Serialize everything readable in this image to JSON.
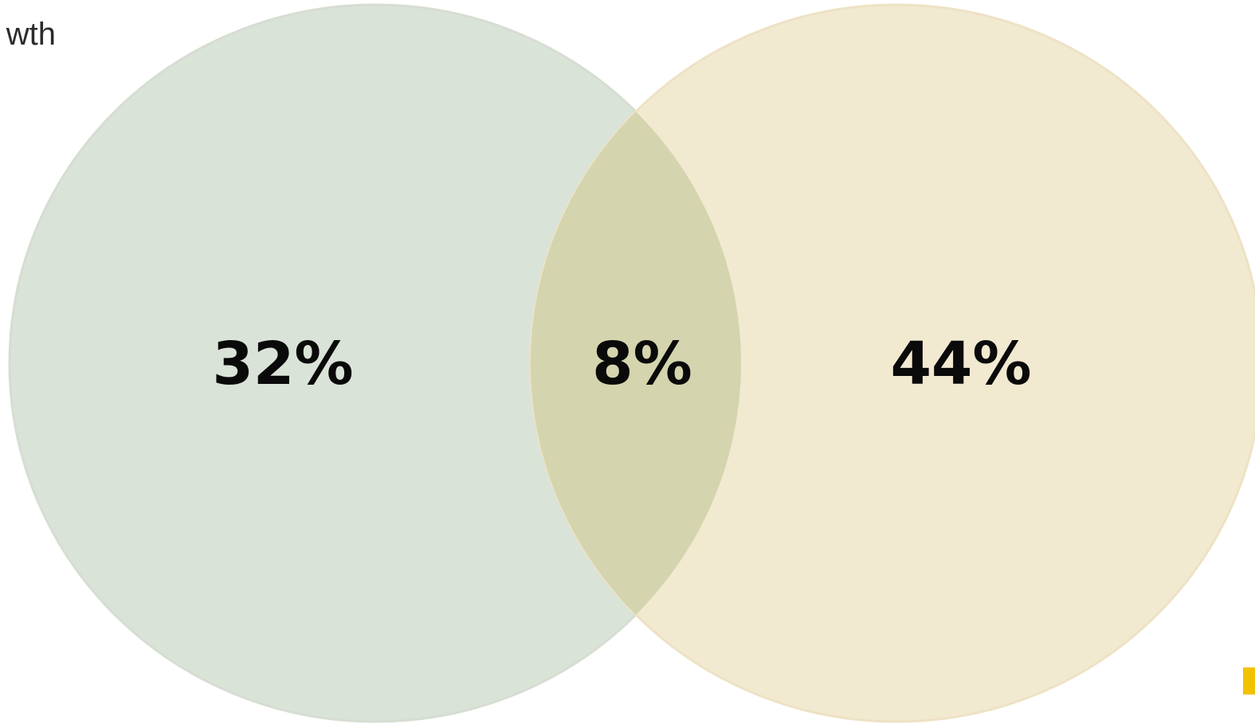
{
  "heading": {
    "text": "wth"
  },
  "venn": {
    "left_only_label": "32%",
    "overlap_label": "8%",
    "right_only_label": "44%",
    "left_color": "#dae3d7",
    "right_color": "#f2e9d1",
    "overlap_color": "#d4d4ae"
  },
  "accent": {
    "corner_mark_color": "#f2c200"
  }
}
